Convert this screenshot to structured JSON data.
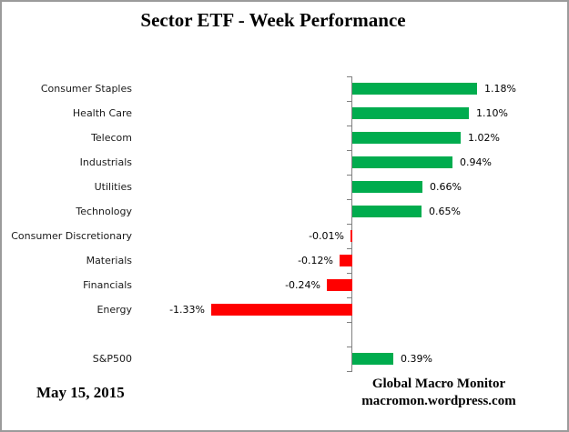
{
  "chart_data": {
    "type": "bar",
    "orientation": "horizontal",
    "title": "Sector ETF - Week Performance",
    "categories": [
      "Consumer Staples",
      "Health Care",
      "Telecom",
      "Industrials",
      "Utilities",
      "Technology",
      "Consumer Discretionary",
      "Materials",
      "Financials",
      "Energy",
      "",
      "S&P500"
    ],
    "values": [
      1.18,
      1.1,
      1.02,
      0.94,
      0.66,
      0.65,
      -0.01,
      -0.12,
      -0.24,
      -1.33,
      null,
      0.39
    ],
    "value_labels": [
      "1.18%",
      "1.10%",
      "1.02%",
      "0.94%",
      "0.66%",
      "0.65%",
      "-0.01%",
      "-0.12%",
      "-0.24%",
      "-1.33%",
      "",
      "0.39%"
    ],
    "positive_color": "#00AC4E",
    "negative_color": "#FF0000",
    "axis_color": "#808080",
    "grid": false,
    "legend": false,
    "xlabel": "",
    "ylabel": ""
  },
  "footer": {
    "date": "May 15,  2015",
    "attribution_line1": "Global Macro Monitor",
    "attribution_line2": "macromon.wordpress.com"
  }
}
